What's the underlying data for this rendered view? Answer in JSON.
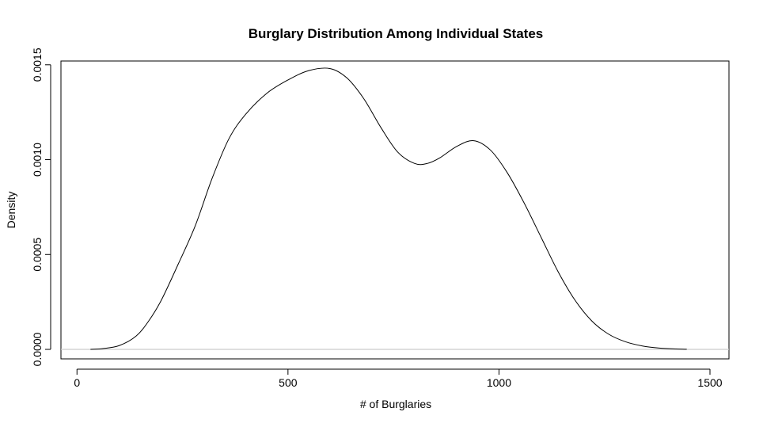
{
  "chart_data": {
    "type": "line",
    "title": "Burglary Distribution Among Individual States",
    "xlabel": "# of Burglaries",
    "ylabel": "Density",
    "xlim": [
      -38,
      1545
    ],
    "ylim": [
      -5e-05,
      0.00152
    ],
    "xticks": [
      0,
      500,
      1000,
      1500
    ],
    "yticks": [
      0,
      0.0005,
      0.001,
      0.0015
    ],
    "xtick_labels": [
      "0",
      "500",
      "1000",
      "1500"
    ],
    "ytick_labels": [
      "0.0000",
      "0.0005",
      "0.0010",
      "0.0015"
    ],
    "baseline": {
      "y": 0,
      "color": "#cccccc"
    },
    "grid": false,
    "series": [
      {
        "color": "#000000",
        "x": [
          32,
          60,
          100,
          140,
          170,
          200,
          240,
          280,
          320,
          360,
          400,
          450,
          500,
          550,
          600,
          640,
          680,
          720,
          760,
          800,
          830,
          860,
          900,
          940,
          980,
          1020,
          1060,
          1100,
          1140,
          1180,
          1220,
          1260,
          1300,
          1340,
          1380,
          1420,
          1445
        ],
        "y": [
          1e-07,
          4e-06,
          2e-05,
          7e-05,
          0.00015,
          0.00026,
          0.00045,
          0.00065,
          0.0009,
          0.00111,
          0.00124,
          0.00135,
          0.00142,
          0.00147,
          0.00148,
          0.00143,
          0.00132,
          0.00117,
          0.00104,
          0.00098,
          0.00098,
          0.00101,
          0.00107,
          0.0011,
          0.00105,
          0.00093,
          0.00077,
          0.00059,
          0.00041,
          0.00026,
          0.00015,
          8e-05,
          4e-05,
          1.8e-05,
          7e-06,
          2e-06,
          5e-07
        ]
      }
    ]
  }
}
